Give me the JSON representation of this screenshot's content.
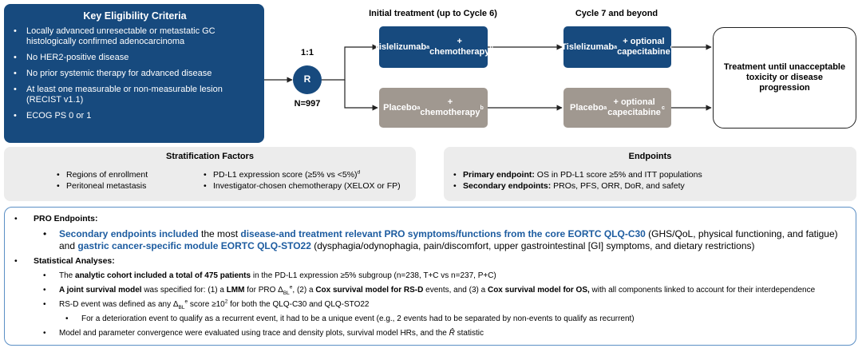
{
  "eligibility": {
    "title": "Key Eligibility Criteria",
    "items": [
      [
        {
          "text": "Locally advanced unresectable or metastatic GC histologically confirmed adenocarcinoma"
        }
      ],
      [
        {
          "text": "No HER2-positive disease"
        }
      ],
      [
        {
          "text": "No prior systemic therapy for advanced disease"
        }
      ],
      [
        {
          "text": "At least one measurable or non-measurable lesion (RECIST v1.1)"
        }
      ],
      [
        {
          "text": "ECOG PS 0 or 1"
        }
      ]
    ]
  },
  "randomization": {
    "ratio": "1:1",
    "label": "R",
    "n": "N=997"
  },
  "phases": [
    "Initial treatment (up to Cycle 6)",
    "Cycle 7 and beyond"
  ],
  "arms": [
    [
      {
        "text": "Tislelizumab"
      },
      {
        "text": "a",
        "sup": true
      },
      {
        "text": " + chemotherapy"
      },
      {
        "text": "b",
        "sup": true
      }
    ],
    [
      {
        "text": "Tislelizumab"
      },
      {
        "text": "a",
        "sup": true
      },
      {
        "text": " + optional capecitabine"
      },
      {
        "text": "c",
        "sup": true
      }
    ],
    [
      {
        "text": "Placebo"
      },
      {
        "text": "a",
        "sup": true
      },
      {
        "text": " + chemotherapy"
      },
      {
        "text": "b",
        "sup": true
      }
    ],
    [
      {
        "text": "Placebo"
      },
      {
        "text": "a",
        "sup": true
      },
      {
        "text": " + optional capecitabine"
      },
      {
        "text": "c",
        "sup": true
      }
    ]
  ],
  "outcome": "Treatment until unacceptable toxicity or disease progression",
  "stratification": {
    "title": "Stratification Factors",
    "columns": [
      [
        [
          {
            "text": "Regions of enrollment"
          }
        ],
        [
          {
            "text": "Peritoneal metastasis"
          }
        ]
      ],
      [
        [
          {
            "text": "PD-L1 expression score (≥5% vs <5%)"
          },
          {
            "text": "d",
            "sup": true
          }
        ],
        [
          {
            "text": "Investigator-chosen chemotherapy (XELOX or FP)"
          }
        ]
      ]
    ]
  },
  "endpoints": {
    "title": "Endpoints",
    "items": [
      [
        {
          "text": "Primary endpoint:",
          "bold": true
        },
        {
          "text": " OS in PD-L1 score ≥5% and ITT populations"
        }
      ],
      [
        {
          "text": "Secondary endpoints:",
          "bold": true
        },
        {
          "text": " PROs, PFS, ORR, DoR, and safety"
        }
      ]
    ]
  },
  "details": [
    {
      "level": 0,
      "segments": [
        {
          "text": "PRO Endpoints:",
          "bold": true
        }
      ]
    },
    {
      "level": 1,
      "segments": [
        {
          "text": "Secondary endpoints included",
          "bold": true,
          "accent": true
        },
        {
          "text": " the most "
        },
        {
          "text": "disease-and treatment relevant PRO symptoms/functions from the core EORTC QLQ-C30",
          "bold": true,
          "accent": true
        },
        {
          "text": " (GHS/QoL, physical functioning, and fatigue) and "
        },
        {
          "text": "gastric cancer-specific module EORTC QLQ-STO22",
          "bold": true,
          "accent": true
        },
        {
          "text": " (dysphagia/odynophagia, pain/discomfort, upper gastrointestinal [GI] symptoms, and dietary restrictions)"
        }
      ]
    },
    {
      "level": 0,
      "segments": [
        {
          "text": "Statistical Analyses:",
          "bold": true
        }
      ]
    },
    {
      "level": 2,
      "segments": [
        {
          "text": "The "
        },
        {
          "text": "analytic cohort included a total of 475 patients",
          "bold": true
        },
        {
          "text": " in the PD-L1 expression ≥5% subgroup (n=238, T+C vs n=237, P+C)"
        }
      ]
    },
    {
      "level": 2,
      "segments": [
        {
          "text": "A joint survival model",
          "bold": true
        },
        {
          "text": " was specified for: (1) a "
        },
        {
          "text": "LMM",
          "bold": true
        },
        {
          "text": " for PRO Δ"
        },
        {
          "text": "BL",
          "sub": true
        },
        {
          "text": "e",
          "sup": true
        },
        {
          "text": ", (2) a "
        },
        {
          "text": "Cox survival model for RS-D",
          "bold": true
        },
        {
          "text": " events, and (3) a "
        },
        {
          "text": "Cox survival model for OS,",
          "bold": true
        },
        {
          "text": " with all components linked to account for their interdependence"
        }
      ]
    },
    {
      "level": 2,
      "segments": [
        {
          "text": "RS-D event was defined as any Δ"
        },
        {
          "text": "BL",
          "sub": true
        },
        {
          "text": "e",
          "sup": true
        },
        {
          "text": " score ≥10"
        },
        {
          "text": "2",
          "sup": true
        },
        {
          "text": " for both the QLQ-C30 and QLQ-STO22"
        }
      ]
    },
    {
      "level": 3,
      "segments": [
        {
          "text": "For a deterioration event to qualify as a recurrent event, it had to be a unique event (e.g., 2 events had to be separated by non-events to qualify as recurrent)"
        }
      ]
    },
    {
      "level": 2,
      "segments": [
        {
          "text": "Model and parameter convergence were evaluated using trace and density plots, survival model HRs, and the "
        },
        {
          "text": "R̂",
          "italic": true
        },
        {
          "text": " statistic"
        }
      ]
    }
  ]
}
